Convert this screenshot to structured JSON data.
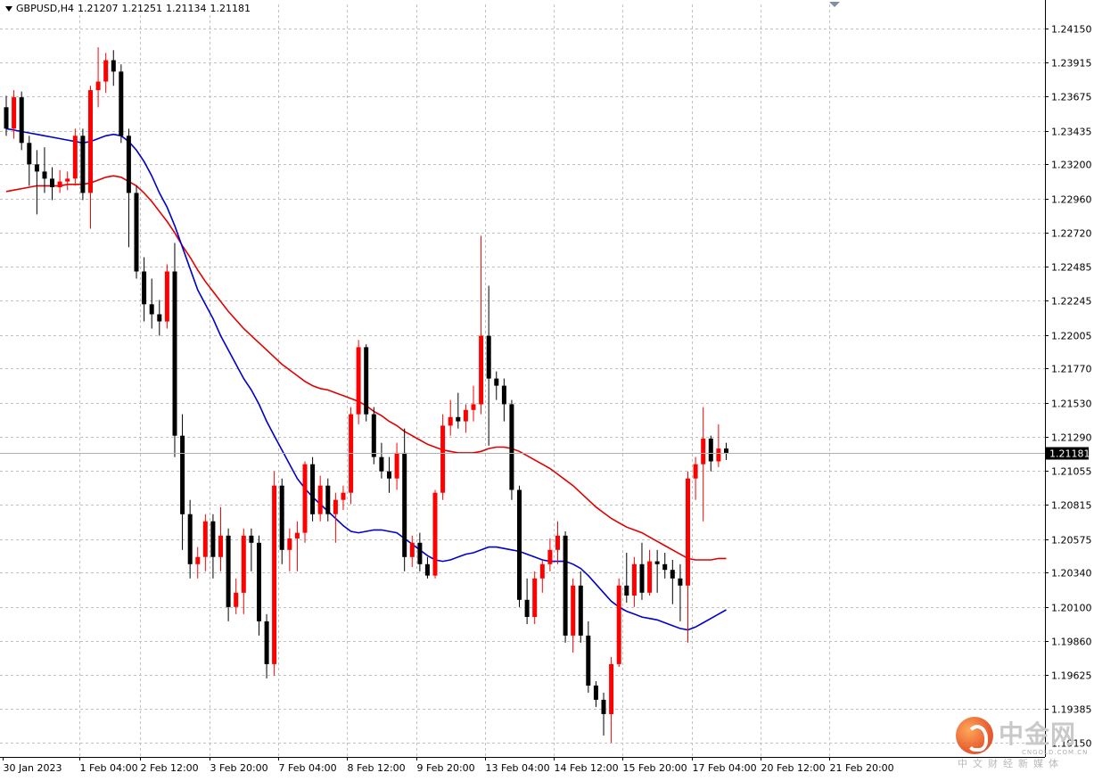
{
  "header": {
    "symbol": "GBPUSD,H4",
    "open": "1.21207",
    "high": "1.21251",
    "low": "1.21134",
    "close": "1.21181"
  },
  "watermark": {
    "title": "中金网",
    "domain": "CNGOLD.COM.CN",
    "subtitle": "中文财经新媒体"
  },
  "colors": {
    "bull": "#ff0000",
    "bear": "#000000",
    "ma_fast": "#0000cc",
    "ma_slow": "#e00000",
    "grid": "#c0c0c0",
    "price_tag_bg": "#000000",
    "price_tag_text": "#ffffff"
  },
  "chart_data": {
    "type": "candlestick",
    "symbol": "GBPUSD",
    "timeframe": "H4",
    "ylim": [
      1.1905,
      1.2432
    ],
    "y_ticks": [
      "1.24150",
      "1.23915",
      "1.23675",
      "1.23435",
      "1.23200",
      "1.22960",
      "1.22720",
      "1.22485",
      "1.22245",
      "1.22005",
      "1.21770",
      "1.21530",
      "1.21290",
      "1.21055",
      "1.20815",
      "1.20575",
      "1.20340",
      "1.20100",
      "1.19860",
      "1.19625",
      "1.19385",
      "1.19150"
    ],
    "x_ticks": [
      {
        "label": "30 Jan 2023",
        "index": 0
      },
      {
        "label": "1 Feb 04:00",
        "index": 10
      },
      {
        "label": "2 Feb 12:00",
        "index": 18
      },
      {
        "label": "3 Feb 20:00",
        "index": 27
      },
      {
        "label": "7 Feb 04:00",
        "index": 36
      },
      {
        "label": "8 Feb 12:00",
        "index": 45
      },
      {
        "label": "9 Feb 20:00",
        "index": 54
      },
      {
        "label": "13 Feb 04:00",
        "index": 63
      },
      {
        "label": "14 Feb 12:00",
        "index": 72
      },
      {
        "label": "15 Feb 20:00",
        "index": 81
      },
      {
        "label": "17 Feb 04:00",
        "index": 90
      },
      {
        "label": "20 Feb 12:00",
        "index": 99
      },
      {
        "label": "21 Feb 20:00",
        "index": 108
      }
    ],
    "current_price": "1.21181",
    "candles": [
      [
        1.236,
        1.2368,
        1.234,
        1.2345
      ],
      [
        1.2345,
        1.2372,
        1.2338,
        1.2367
      ],
      [
        1.2367,
        1.2371,
        1.233,
        1.2335
      ],
      [
        1.2335,
        1.234,
        1.2305,
        1.232
      ],
      [
        1.232,
        1.233,
        1.2285,
        1.2315
      ],
      [
        1.2315,
        1.2332,
        1.23,
        1.231
      ],
      [
        1.231,
        1.2318,
        1.2295,
        1.2304
      ],
      [
        1.2304,
        1.2316,
        1.23,
        1.2308
      ],
      [
        1.2308,
        1.2315,
        1.2302,
        1.231
      ],
      [
        1.231,
        1.2345,
        1.2305,
        1.234
      ],
      [
        1.234,
        1.2345,
        1.2295,
        1.23
      ],
      [
        1.23,
        1.2375,
        1.2275,
        1.2372
      ],
      [
        1.2372,
        1.2402,
        1.236,
        1.2378
      ],
      [
        1.2378,
        1.2398,
        1.237,
        1.2393
      ],
      [
        1.2393,
        1.24,
        1.2375,
        1.2385
      ],
      [
        1.2385,
        1.239,
        1.2335,
        1.234
      ],
      [
        1.234,
        1.2345,
        1.2262,
        1.23
      ],
      [
        1.23,
        1.2305,
        1.224,
        1.2245
      ],
      [
        1.2245,
        1.2255,
        1.221,
        1.2222
      ],
      [
        1.2222,
        1.224,
        1.2205,
        1.2215
      ],
      [
        1.2215,
        1.2225,
        1.22,
        1.221
      ],
      [
        1.221,
        1.225,
        1.2205,
        1.2245
      ],
      [
        1.2245,
        1.2265,
        1.2115,
        1.213
      ],
      [
        1.213,
        1.2145,
        1.205,
        1.2075
      ],
      [
        1.2075,
        1.2085,
        1.203,
        1.204
      ],
      [
        1.204,
        1.2052,
        1.203,
        1.2045
      ],
      [
        1.2045,
        1.2075,
        1.2035,
        1.207
      ],
      [
        1.207,
        1.2075,
        1.203,
        1.2045
      ],
      [
        1.2045,
        1.208,
        1.2035,
        1.206
      ],
      [
        1.206,
        1.2065,
        1.2,
        1.201
      ],
      [
        1.201,
        1.203,
        1.2005,
        1.202
      ],
      [
        1.202,
        1.2065,
        1.2005,
        1.206
      ],
      [
        1.206,
        1.2065,
        1.2035,
        1.2055
      ],
      [
        1.2055,
        1.206,
        1.199,
        1.2
      ],
      [
        1.2,
        1.2005,
        1.196,
        1.197
      ],
      [
        1.197,
        1.2105,
        1.1962,
        1.2095
      ],
      [
        1.2095,
        1.21,
        1.204,
        1.205
      ],
      [
        1.205,
        1.2065,
        1.2035,
        1.2058
      ],
      [
        1.2058,
        1.207,
        1.2035,
        1.2062
      ],
      [
        1.2062,
        1.2112,
        1.2055,
        1.211
      ],
      [
        1.211,
        1.2115,
        1.207,
        1.2075
      ],
      [
        1.2075,
        1.2102,
        1.207,
        1.2095
      ],
      [
        1.2095,
        1.21,
        1.207,
        1.2075
      ],
      [
        1.2075,
        1.209,
        1.2055,
        1.2085
      ],
      [
        1.2085,
        1.2095,
        1.2078,
        1.209
      ],
      [
        1.209,
        1.215,
        1.2082,
        1.2145
      ],
      [
        1.2145,
        1.2197,
        1.2138,
        1.2192
      ],
      [
        1.2192,
        1.2194,
        1.214,
        1.2145
      ],
      [
        1.2145,
        1.215,
        1.211,
        1.2115
      ],
      [
        1.2115,
        1.2125,
        1.21,
        1.2105
      ],
      [
        1.2105,
        1.2115,
        1.209,
        1.21
      ],
      [
        1.21,
        1.2125,
        1.2092,
        1.2118
      ],
      [
        1.2118,
        1.2135,
        1.2035,
        1.2045
      ],
      [
        1.2045,
        1.206,
        1.2038,
        1.2055
      ],
      [
        1.2055,
        1.2062,
        1.2035,
        1.204
      ],
      [
        1.204,
        1.2045,
        1.203,
        1.2032
      ],
      [
        1.2032,
        1.2092,
        1.203,
        1.209
      ],
      [
        1.209,
        1.2145,
        1.2085,
        1.2137
      ],
      [
        1.2137,
        1.2155,
        1.213,
        1.2143
      ],
      [
        1.2143,
        1.216,
        1.2135,
        1.214
      ],
      [
        1.214,
        1.2152,
        1.2132,
        1.2148
      ],
      [
        1.2148,
        1.2165,
        1.214,
        1.2152
      ],
      [
        1.2152,
        1.227,
        1.2145,
        1.22
      ],
      [
        1.22,
        1.2235,
        1.2123,
        1.217
      ],
      [
        1.217,
        1.2175,
        1.2155,
        1.2165
      ],
      [
        1.2165,
        1.217,
        1.214,
        1.2152
      ],
      [
        1.2152,
        1.2155,
        1.2085,
        1.2092
      ],
      [
        1.2092,
        1.2095,
        1.201,
        1.2015
      ],
      [
        1.2015,
        1.203,
        1.1998,
        1.2003
      ],
      [
        1.2003,
        1.2035,
        1.1998,
        1.203
      ],
      [
        1.203,
        1.2043,
        1.202,
        1.204
      ],
      [
        1.204,
        1.2058,
        1.2035,
        1.205
      ],
      [
        1.205,
        1.207,
        1.204,
        1.206
      ],
      [
        1.206,
        1.2063,
        1.1985,
        1.199
      ],
      [
        1.199,
        1.203,
        1.1978,
        1.2025
      ],
      [
        1.2025,
        1.2035,
        1.1985,
        1.199
      ],
      [
        1.199,
        1.2,
        1.195,
        1.1955
      ],
      [
        1.1955,
        1.1958,
        1.194,
        1.1945
      ],
      [
        1.1945,
        1.195,
        1.192,
        1.1935
      ],
      [
        1.1935,
        1.1975,
        1.1915,
        1.197
      ],
      [
        1.197,
        1.203,
        1.1968,
        1.2025
      ],
      [
        1.2025,
        1.2048,
        1.2013,
        1.2018
      ],
      [
        1.2018,
        1.2045,
        1.201,
        1.204
      ],
      [
        1.204,
        1.2055,
        1.2015,
        1.202
      ],
      [
        1.202,
        1.205,
        1.2018,
        1.2042
      ],
      [
        1.2042,
        1.205,
        1.202,
        1.204
      ],
      [
        1.204,
        1.2048,
        1.203,
        1.2036
      ],
      [
        1.2036,
        1.2043,
        1.2012,
        1.203
      ],
      [
        1.203,
        1.204,
        1.2,
        1.2025
      ],
      [
        1.2025,
        1.2105,
        1.1985,
        1.21
      ],
      [
        1.21,
        1.2115,
        1.2085,
        1.211
      ],
      [
        1.211,
        1.215,
        1.207,
        1.2128
      ],
      [
        1.2128,
        1.213,
        1.2105,
        1.2112
      ],
      [
        1.2112,
        1.2138,
        1.2108,
        1.2121
      ],
      [
        1.2121,
        1.2125,
        1.2113,
        1.2118
      ]
    ],
    "ma_fast": {
      "values": [
        1.2345,
        1.2344,
        1.2343,
        1.2342,
        1.2341,
        1.234,
        1.2339,
        1.2338,
        1.2337,
        1.2336,
        1.2335,
        1.2336,
        1.2338,
        1.234,
        1.2341,
        1.234,
        1.2336,
        1.233,
        1.2322,
        1.2312,
        1.23,
        1.229,
        1.2277,
        1.2262,
        1.2247,
        1.2232,
        1.2222,
        1.2212,
        1.22,
        1.219,
        1.218,
        1.217,
        1.2162,
        1.2152,
        1.214,
        1.213,
        1.212,
        1.211,
        1.21,
        1.2093,
        1.2087,
        1.2082,
        1.2077,
        1.2072,
        1.2067,
        1.2063,
        1.2062,
        1.2063,
        1.2064,
        1.2064,
        1.2063,
        1.2062,
        1.2058,
        1.2054,
        1.205,
        1.2046,
        1.2043,
        1.2042,
        1.2043,
        1.2045,
        1.2047,
        1.2048,
        1.205,
        1.2052,
        1.2052,
        1.2051,
        1.205,
        1.2049,
        1.2047,
        1.2045,
        1.2043,
        1.2042,
        1.2042,
        1.2042,
        1.204,
        1.2037,
        1.2032,
        1.2026,
        1.202,
        1.2014,
        1.201,
        1.2007,
        1.2005,
        1.2003,
        1.2002,
        1.2001,
        1.1999,
        1.1997,
        1.1995,
        1.1994,
        1.1996,
        1.1999,
        1.2002,
        1.2005,
        1.2008
      ]
    },
    "ma_slow": {
      "values": [
        1.2301,
        1.2302,
        1.2303,
        1.2304,
        1.2305,
        1.2305,
        1.2305,
        1.2305,
        1.2306,
        1.2306,
        1.2306,
        1.2307,
        1.2309,
        1.2311,
        1.2312,
        1.2311,
        1.2308,
        1.2305,
        1.23,
        1.2294,
        1.2287,
        1.228,
        1.2272,
        1.2263,
        1.2255,
        1.2246,
        1.2238,
        1.2231,
        1.2224,
        1.2217,
        1.2211,
        1.2205,
        1.22,
        1.2195,
        1.219,
        1.2185,
        1.218,
        1.2176,
        1.2172,
        1.2168,
        1.2165,
        1.2163,
        1.2162,
        1.216,
        1.2158,
        1.2156,
        1.2154,
        1.2151,
        1.2147,
        1.2144,
        1.214,
        1.2137,
        1.2133,
        1.213,
        1.2127,
        1.2124,
        1.2122,
        1.212,
        1.2119,
        1.2118,
        1.2118,
        1.2118,
        1.2119,
        1.2121,
        1.2122,
        1.2122,
        1.2121,
        1.2119,
        1.2116,
        1.2113,
        1.211,
        1.2107,
        1.2103,
        1.2099,
        1.2095,
        1.209,
        1.2085,
        1.208,
        1.2076,
        1.2072,
        1.2069,
        1.2066,
        1.2064,
        1.2062,
        1.2059,
        1.2056,
        1.2053,
        1.205,
        1.2047,
        1.2044,
        1.2043,
        1.2043,
        1.2043,
        1.2044,
        1.2044
      ]
    }
  }
}
